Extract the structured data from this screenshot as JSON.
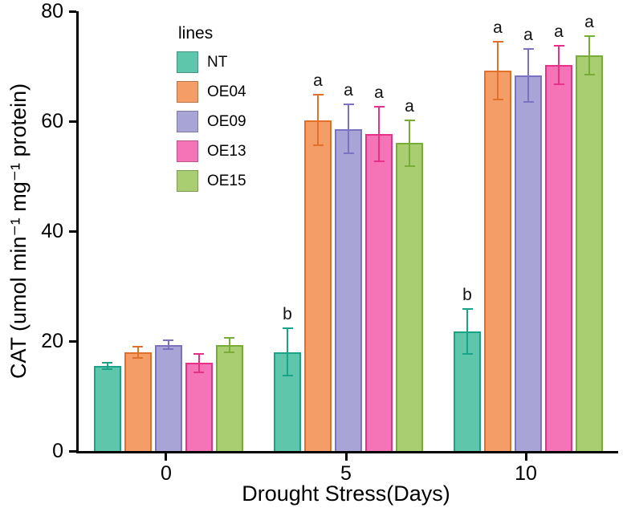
{
  "chart_data": {
    "type": "bar",
    "title": "",
    "xlabel": "Drought Stress(Days)",
    "ylabel": "CAT (umol min⁻¹ mg⁻¹ protein)",
    "categories": [
      "0",
      "5",
      "10"
    ],
    "ylim": [
      0,
      80
    ],
    "yticks": [
      0,
      20,
      40,
      60,
      80
    ],
    "grid": false,
    "legend_title": "lines",
    "legend_position": "top-left-inside",
    "series": [
      {
        "name": "NT",
        "fill": "#5ec6ab",
        "stroke": "#1ba389",
        "values": [
          15.5,
          18.0,
          21.8
        ],
        "errors": [
          0.6,
          4.3,
          4.1
        ],
        "sig": [
          "",
          "b",
          "b"
        ]
      },
      {
        "name": "OE04",
        "fill": "#f49d66",
        "stroke": "#e2702a",
        "values": [
          18.0,
          60.2,
          69.2
        ],
        "errors": [
          1.0,
          4.6,
          5.3
        ],
        "sig": [
          "",
          "a",
          "a"
        ]
      },
      {
        "name": "OE09",
        "fill": "#a9a4d6",
        "stroke": "#7b72c1",
        "values": [
          19.3,
          58.6,
          68.3
        ],
        "errors": [
          0.8,
          4.4,
          4.8
        ],
        "sig": [
          "",
          "a",
          "a"
        ]
      },
      {
        "name": "OE13",
        "fill": "#f573b7",
        "stroke": "#e8308a",
        "values": [
          16.0,
          57.7,
          70.2
        ],
        "errors": [
          1.7,
          5.0,
          3.5
        ],
        "sig": [
          "",
          "a",
          "a"
        ]
      },
      {
        "name": "OE15",
        "fill": "#a9ce71",
        "stroke": "#77ad36",
        "values": [
          19.3,
          56.0,
          72.0
        ],
        "errors": [
          1.3,
          4.2,
          3.5
        ],
        "sig": [
          "",
          "a",
          "a"
        ]
      }
    ]
  }
}
